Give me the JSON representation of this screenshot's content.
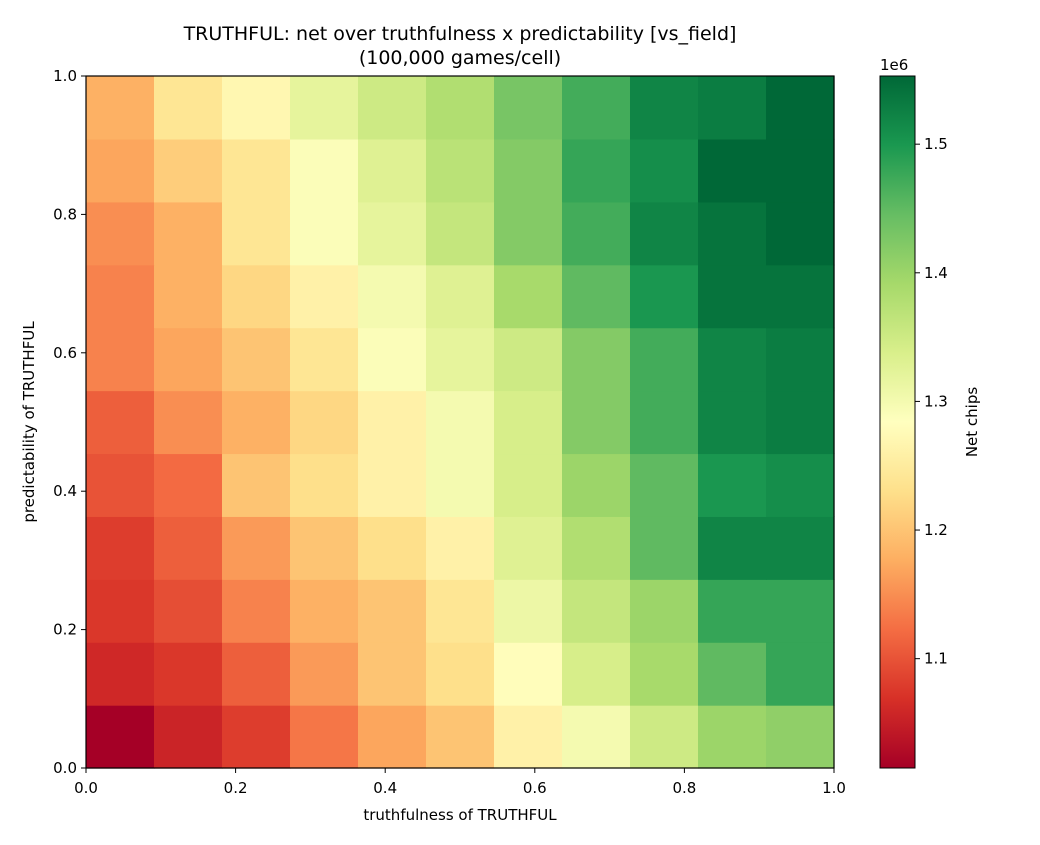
{
  "chart_data": {
    "type": "heatmap",
    "title": "TRUTHFUL: net over truthfulness x predictability  [vs_field]",
    "subtitle": "(100,000 games/cell)",
    "xlabel": "truthfulness of TRUTHFUL",
    "ylabel": "predictability of TRUTHFUL",
    "xlim": [
      0.0,
      1.0
    ],
    "ylim": [
      0.0,
      1.0
    ],
    "x_ticks": [
      "0.0",
      "0.2",
      "0.4",
      "0.6",
      "0.8",
      "1.0"
    ],
    "y_ticks": [
      "0.0",
      "0.2",
      "0.4",
      "0.6",
      "0.8",
      "1.0"
    ],
    "grid": false,
    "colormap": "RdYlGn",
    "colorbar": {
      "label": "Net chips",
      "offset_text": "1e6",
      "range": [
        1.015,
        1.553
      ],
      "ticks": [
        "1.1",
        "1.2",
        "1.3",
        "1.4",
        "1.5"
      ]
    },
    "n_x": 11,
    "n_y": 11,
    "values": [
      [
        1.015,
        1.055,
        1.08,
        1.13,
        1.17,
        1.2,
        1.26,
        1.3,
        1.35,
        1.4,
        1.41
      ],
      [
        1.06,
        1.075,
        1.11,
        1.16,
        1.2,
        1.23,
        1.28,
        1.34,
        1.39,
        1.45,
        1.48
      ],
      [
        1.075,
        1.095,
        1.14,
        1.18,
        1.2,
        1.24,
        1.31,
        1.36,
        1.4,
        1.48,
        1.48
      ],
      [
        1.08,
        1.11,
        1.16,
        1.2,
        1.23,
        1.26,
        1.33,
        1.38,
        1.45,
        1.52,
        1.52
      ],
      [
        1.1,
        1.12,
        1.2,
        1.23,
        1.26,
        1.3,
        1.34,
        1.4,
        1.45,
        1.5,
        1.51
      ],
      [
        1.11,
        1.15,
        1.18,
        1.22,
        1.26,
        1.3,
        1.34,
        1.42,
        1.47,
        1.52,
        1.53
      ],
      [
        1.14,
        1.17,
        1.2,
        1.24,
        1.29,
        1.32,
        1.35,
        1.42,
        1.47,
        1.52,
        1.53
      ],
      [
        1.14,
        1.18,
        1.22,
        1.26,
        1.3,
        1.33,
        1.39,
        1.45,
        1.5,
        1.54,
        1.54
      ],
      [
        1.15,
        1.18,
        1.24,
        1.29,
        1.32,
        1.36,
        1.42,
        1.47,
        1.52,
        1.54,
        1.553
      ],
      [
        1.17,
        1.21,
        1.24,
        1.29,
        1.33,
        1.37,
        1.42,
        1.48,
        1.51,
        1.553,
        1.553
      ],
      [
        1.18,
        1.24,
        1.27,
        1.32,
        1.35,
        1.38,
        1.43,
        1.47,
        1.52,
        1.53,
        1.553
      ]
    ]
  }
}
